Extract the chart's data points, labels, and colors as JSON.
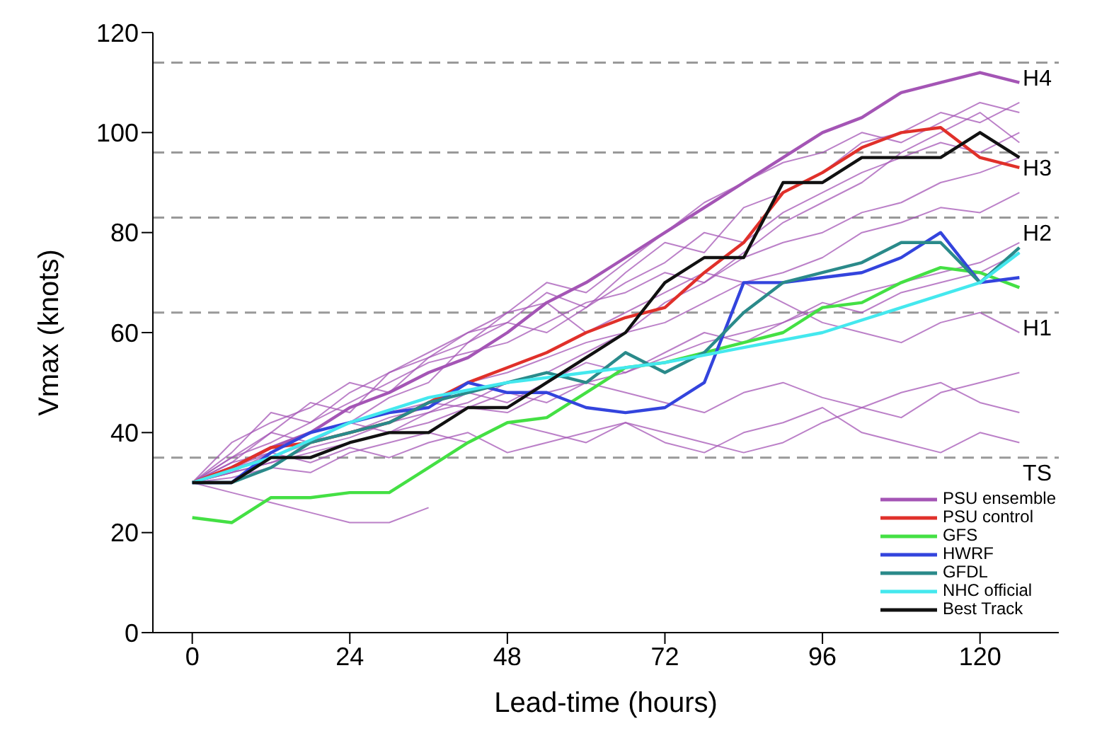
{
  "chart_data": {
    "type": "line",
    "xlabel": "Lead-time (hours)",
    "ylabel": "Vmax (knots)",
    "xlim": [
      -6,
      132
    ],
    "xticks": [
      0,
      24,
      48,
      72,
      96,
      120
    ],
    "ylim": [
      0,
      120
    ],
    "yticks": [
      0,
      20,
      40,
      60,
      80,
      100,
      120
    ],
    "x": [
      0,
      6,
      12,
      18,
      24,
      30,
      36,
      42,
      48,
      54,
      60,
      66,
      72,
      78,
      84,
      90,
      96,
      102,
      108,
      114,
      120,
      126
    ],
    "legend": "bottom right",
    "ref_lines": [
      {
        "axis": "y",
        "value": 114,
        "label": "H4",
        "color": "#999999",
        "line_style": "dashed"
      },
      {
        "axis": "y",
        "value": 96,
        "label": "H3",
        "color": "#999999",
        "line_style": "dashed"
      },
      {
        "axis": "y",
        "value": 83,
        "label": "H2",
        "color": "#999999",
        "line_style": "dashed"
      },
      {
        "axis": "y",
        "value": 64,
        "label": "H1",
        "color": "#999999",
        "line_style": "dashed"
      },
      {
        "axis": "y",
        "value": 35,
        "label": "TS",
        "color": "#999999",
        "line_style": "dashed"
      }
    ],
    "series": [
      {
        "name": "PSU ensemble",
        "color": "#a455b5",
        "values": [
          30,
          33,
          37,
          40,
          45,
          48,
          52,
          55,
          60,
          66,
          70,
          75,
          80,
          85,
          90,
          95,
          100,
          103,
          108,
          110,
          112,
          110
        ]
      },
      {
        "color": "#a455b5",
        "values": [
          30,
          35,
          40,
          38,
          42,
          47,
          50,
          58,
          62,
          60,
          65,
          72,
          78,
          76,
          85,
          88,
          92,
          98,
          100,
          104,
          102,
          106
        ]
      },
      {
        "color": "#a455b5",
        "values": [
          30,
          38,
          42,
          45,
          50,
          48,
          55,
          60,
          62,
          68,
          65,
          70,
          74,
          80,
          78,
          84,
          88,
          92,
          95,
          98,
          96,
          100
        ]
      },
      {
        "color": "#a455b5",
        "values": [
          30,
          32,
          34,
          36,
          38,
          40,
          42,
          45,
          44,
          48,
          50,
          52,
          55,
          58,
          60,
          62,
          65,
          68,
          70,
          72,
          74,
          78
        ]
      },
      {
        "color": "#a455b5",
        "values": [
          30,
          34,
          36,
          40,
          42,
          44,
          46,
          45,
          48,
          46,
          50,
          48,
          46,
          44,
          48,
          50,
          47,
          45,
          48,
          50,
          46,
          44
        ]
      },
      {
        "color": "#a455b5",
        "values": [
          30,
          31,
          33,
          32,
          36,
          38,
          40,
          38,
          42,
          40,
          38,
          42,
          40,
          38,
          36,
          38,
          42,
          45,
          43,
          48,
          50,
          52
        ]
      },
      {
        "color": "#a455b5",
        "values": [
          30,
          36,
          44,
          42,
          48,
          52,
          56,
          60,
          64,
          70,
          68,
          74,
          80,
          86,
          90,
          94,
          96,
          100,
          98,
          102,
          106,
          104
        ]
      },
      {
        "color": "#a455b5",
        "values": [
          30,
          33,
          35,
          38,
          40,
          43,
          45,
          50,
          52,
          55,
          58,
          60,
          62,
          66,
          70,
          72,
          75,
          80,
          82,
          85,
          84,
          88
        ]
      },
      {
        "color": "#a455b5",
        "values": [
          30,
          32,
          36,
          34,
          37,
          35,
          38,
          40,
          36,
          38,
          40,
          42,
          38,
          36,
          40,
          42,
          45,
          40,
          38,
          36,
          40,
          38
        ]
      },
      {
        "color": "#a455b5",
        "values": [
          30,
          35,
          38,
          42,
          46,
          50,
          54,
          56,
          58,
          62,
          66,
          68,
          72,
          70,
          75,
          78,
          80,
          84,
          86,
          90,
          92,
          95
        ]
      },
      {
        "color": "#a455b5",
        "values": [
          30,
          34,
          40,
          46,
          44,
          52,
          55,
          58,
          64,
          66,
          60,
          64,
          68,
          72,
          70,
          66,
          62,
          60,
          58,
          62,
          64,
          60
        ]
      },
      {
        "color": "#a455b5",
        "values": [
          30,
          33,
          36,
          40,
          42,
          40,
          44,
          48,
          46,
          50,
          54,
          52,
          56,
          60,
          58,
          62,
          66,
          64,
          68,
          70,
          72,
          76
        ]
      },
      {
        "color": "#a455b5",
        "values": [
          30,
          32,
          34,
          37,
          39,
          42,
          44,
          46,
          50,
          52,
          56,
          60,
          66,
          70,
          76,
          82,
          86,
          90,
          96,
          100,
          104,
          98
        ]
      },
      {
        "color": "#a455b5",
        "x": [
          0,
          6,
          12,
          18,
          24,
          30,
          36
        ],
        "values": [
          30,
          28,
          26,
          24,
          22,
          22,
          25
        ]
      },
      {
        "name": "PSU control",
        "color": "#e0302a",
        "values": [
          30,
          33,
          37,
          38,
          40,
          42,
          46,
          50,
          53,
          56,
          60,
          63,
          65,
          72,
          78,
          88,
          92,
          97,
          100,
          101,
          95,
          93
        ]
      },
      {
        "name": "GFS",
        "color": "#44e044",
        "values": [
          23,
          22,
          27,
          27,
          28,
          28,
          33,
          38,
          42,
          43,
          48,
          53,
          54,
          56,
          58,
          60,
          65,
          66,
          70,
          73,
          72,
          69
        ]
      },
      {
        "name": "HWRF",
        "color": "#3344dd",
        "values": [
          30,
          30,
          36,
          40,
          42,
          44,
          45,
          50,
          48,
          48,
          45,
          44,
          45,
          50,
          70,
          70,
          71,
          72,
          75,
          80,
          70,
          71
        ]
      },
      {
        "name": "GFDL",
        "color": "#2a8a8a",
        "values": [
          30,
          30,
          33,
          38,
          40,
          42,
          46,
          48,
          50,
          52,
          50,
          56,
          52,
          56,
          64,
          70,
          72,
          74,
          78,
          78,
          70,
          77
        ]
      },
      {
        "name": "NHC official",
        "color": "#44e8ee",
        "x": [
          0,
          12,
          24,
          36,
          48,
          60,
          72,
          84,
          96,
          108,
          120,
          126
        ],
        "values": [
          30,
          35,
          42,
          47,
          50,
          52,
          54,
          57,
          60,
          65,
          70,
          76
        ]
      },
      {
        "name": "Best Track",
        "color": "#111111",
        "values": [
          30,
          30,
          35,
          35,
          38,
          40,
          40,
          45,
          45,
          50,
          55,
          60,
          70,
          75,
          75,
          90,
          90,
          95,
          95,
          95,
          100,
          95
        ]
      }
    ]
  }
}
